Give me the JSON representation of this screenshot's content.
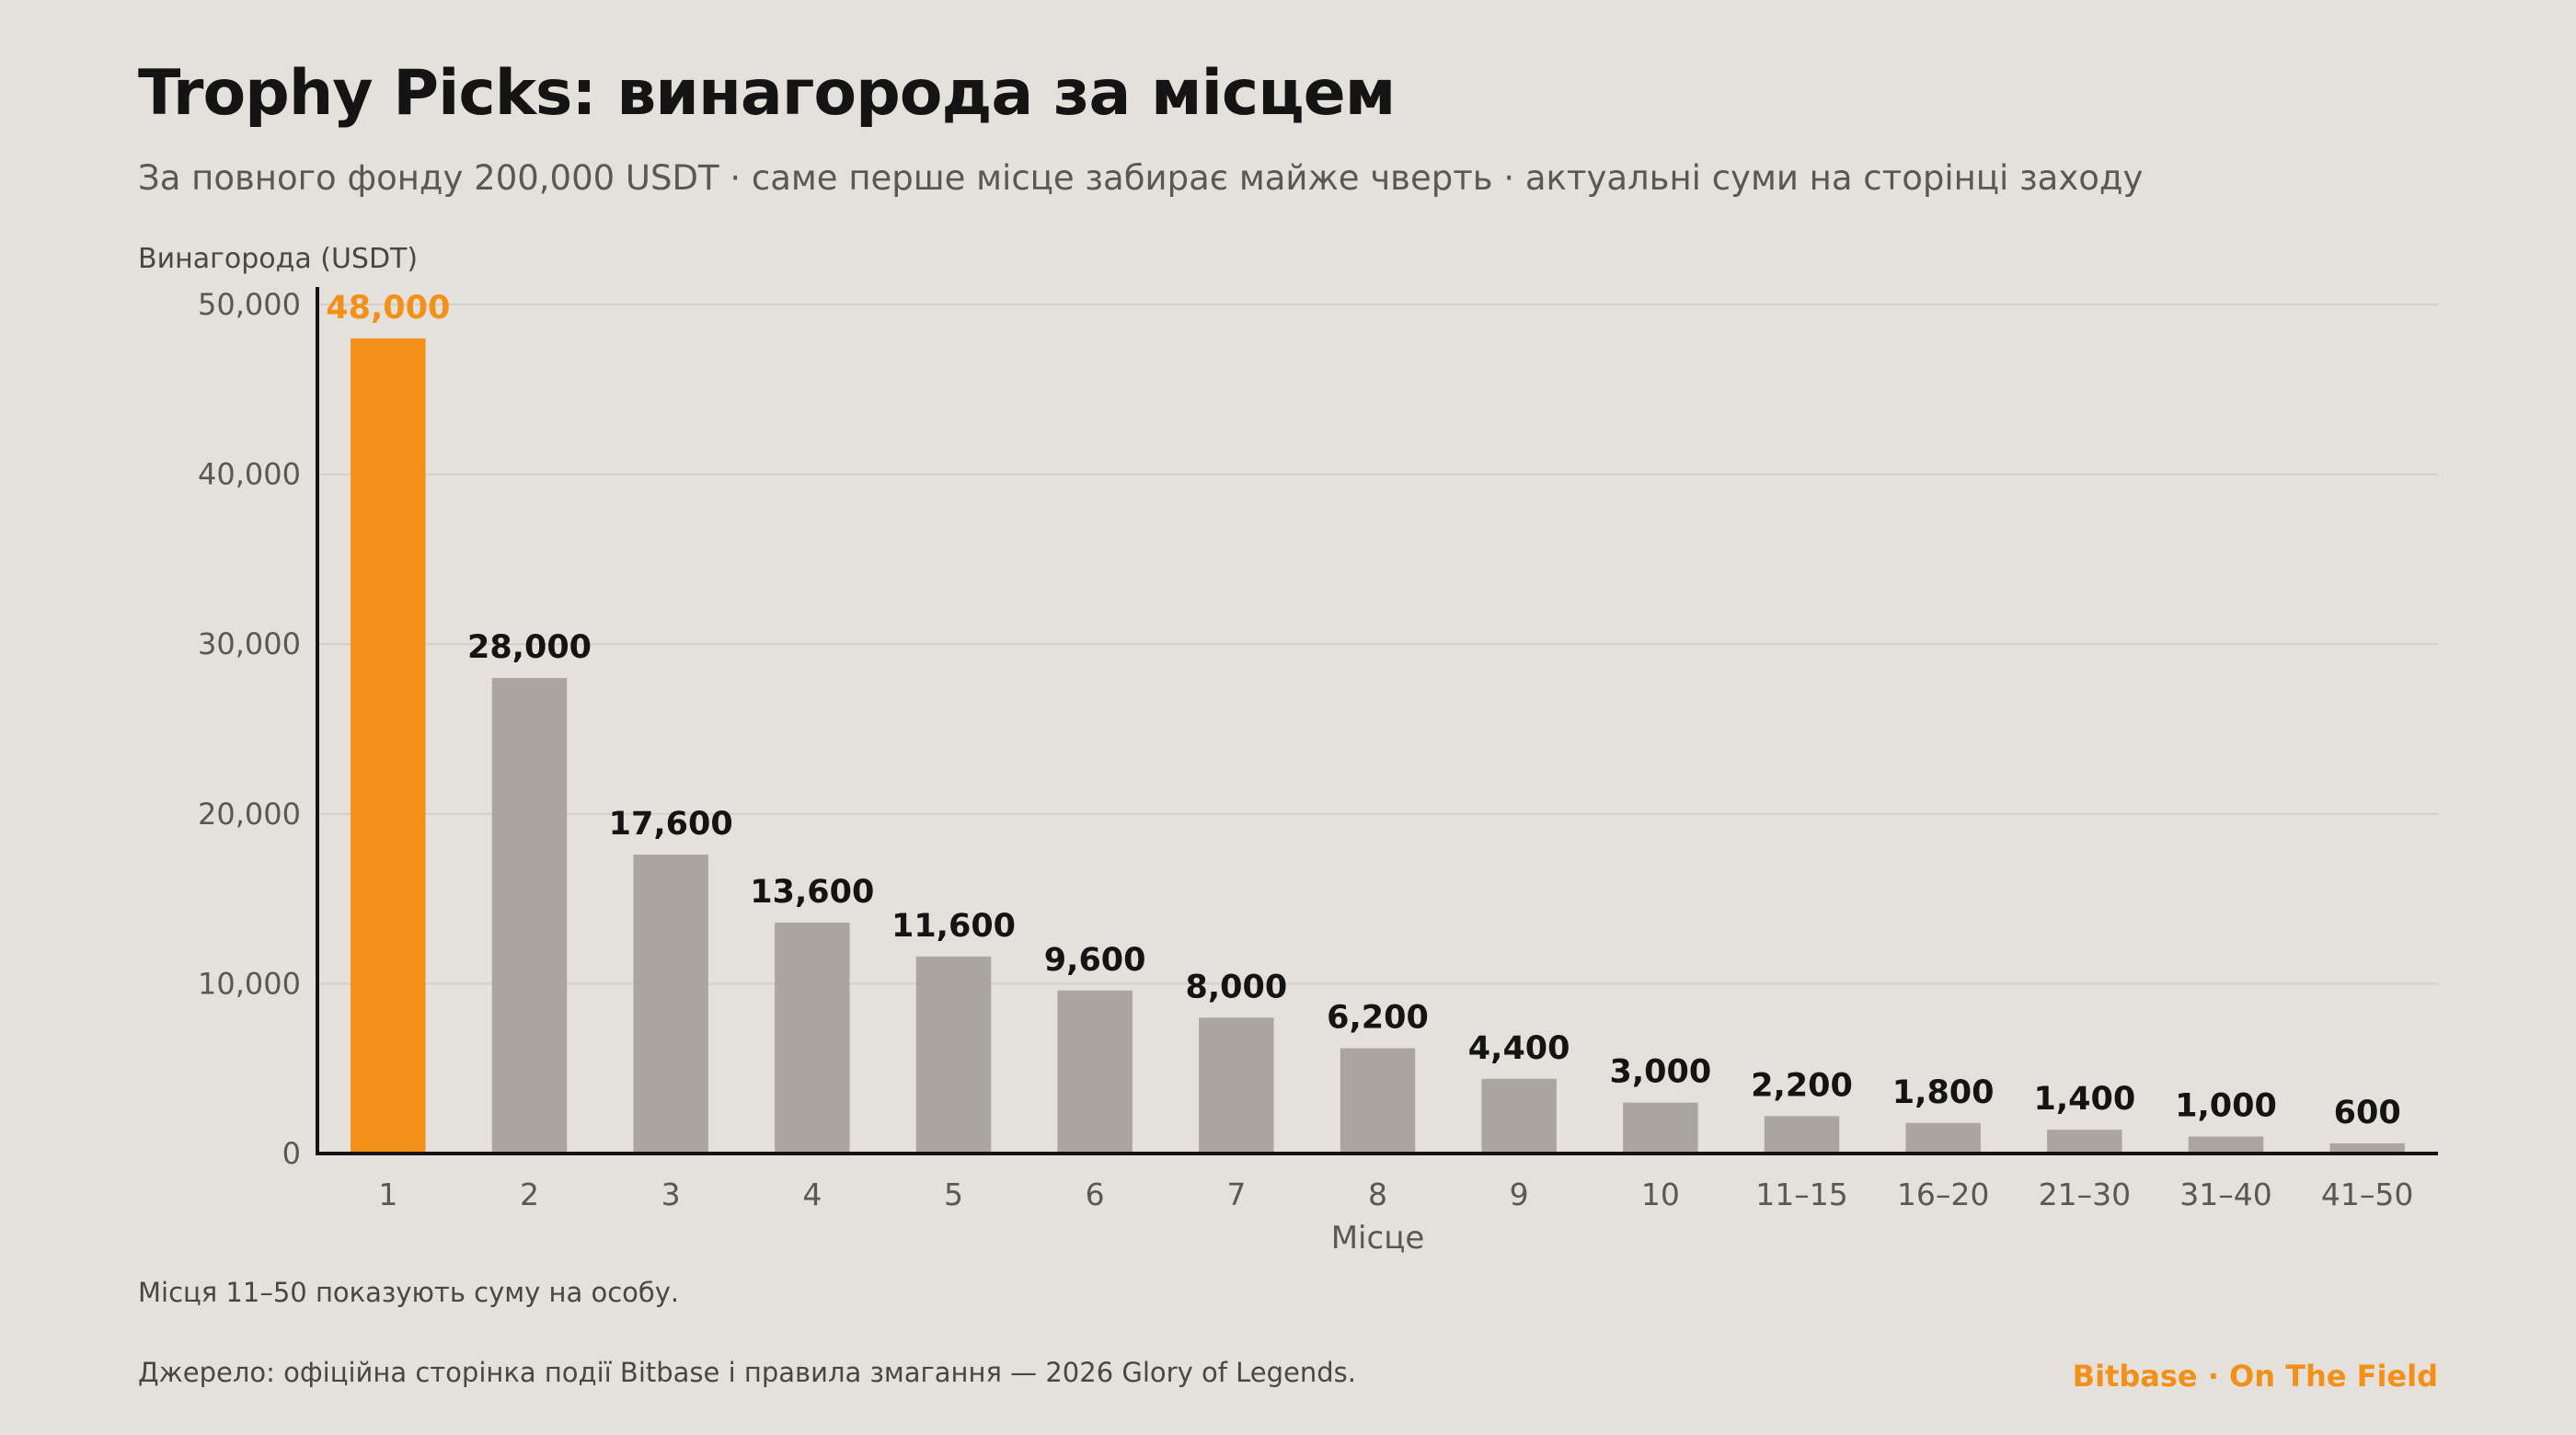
{
  "title": "Trophy Picks: винагорода за місцем",
  "subtitle": "За повного фонду 200,000 USDT · саме перше місце забирає майже чверть · актуальні суми на сторінці заходу",
  "footnote": "Місця 11–50 показують суму на особу.",
  "source": "Джерело: офіційна сторінка події Bitbase і правила змагання — 2026 Glory of Legends.",
  "brand": "Bitbase · On The Field",
  "colors": {
    "highlight": "#f39018",
    "bar": "#aaa69f",
    "axis": "#141414",
    "grid": "#d3cec8"
  },
  "chart_data": {
    "type": "bar",
    "xlabel": "Місце",
    "ylabel": "Винагорода (USDT)",
    "categories": [
      "1",
      "2",
      "3",
      "4",
      "5",
      "6",
      "7",
      "8",
      "9",
      "10",
      "11–15",
      "16–20",
      "21–30",
      "31–40",
      "41–50"
    ],
    "values": [
      48000,
      28000,
      17600,
      13600,
      11600,
      9600,
      8000,
      6200,
      4400,
      3000,
      2200,
      1800,
      1400,
      1000,
      600
    ],
    "value_labels": [
      "48,000",
      "28,000",
      "17,600",
      "13,600",
      "11,600",
      "9,600",
      "8,000",
      "6,200",
      "4,400",
      "3,000",
      "2,200",
      "1,800",
      "1,400",
      "1,000",
      "600"
    ],
    "highlight_index": 0,
    "ylim": [
      0,
      50000
    ],
    "yticks": [
      0,
      10000,
      20000,
      30000,
      40000,
      50000
    ],
    "ytick_labels": [
      "0",
      "10,000",
      "20,000",
      "30,000",
      "40,000",
      "50,000"
    ],
    "grid": true,
    "legend": "none"
  }
}
